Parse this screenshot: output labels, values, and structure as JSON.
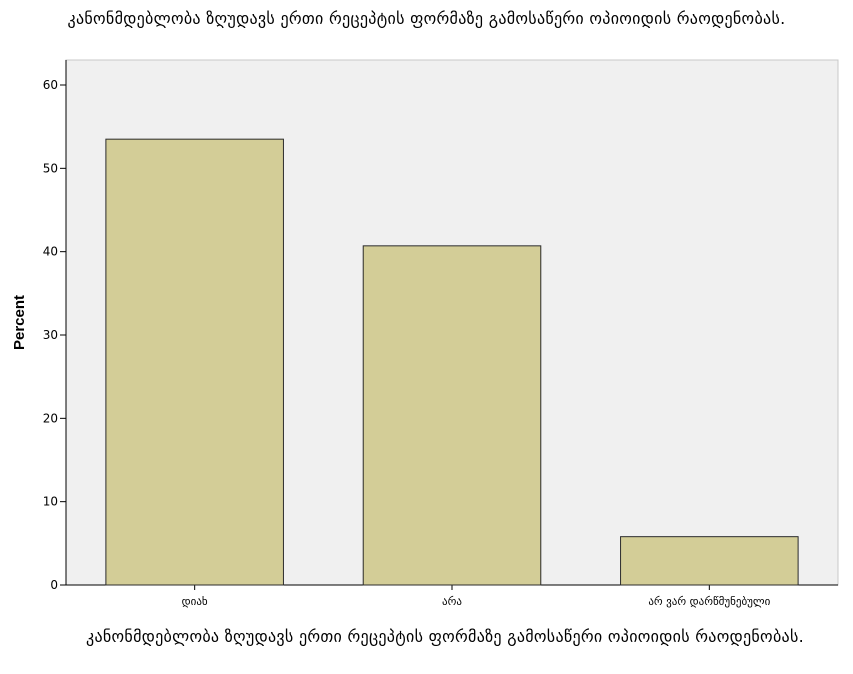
{
  "chart_data": {
    "type": "bar",
    "title": "კანონმდებლობა ზღუდავს ერთი რეცეპტის ფორმაზე გამოსაწერი ოპიოიდის რაოდენობას.",
    "xlabel": "კანონმდებლობა ზღუდავს ერთი რეცეპტის ფორმაზე გამოსაწერი ოპიოიდის რაოდენობას.",
    "ylabel": "Percent",
    "categories": [
      "დიახ",
      "არა",
      "არ ვარ დარწმუნებული"
    ],
    "values": [
      53.5,
      40.7,
      5.8
    ],
    "ylim": [
      0,
      63
    ],
    "yticks": [
      0,
      10,
      20,
      30,
      40,
      50,
      60
    ],
    "grid": false,
    "colors": {
      "bar_fill": "#d3cd97",
      "bar_stroke": "#2b2b2b",
      "plot_background": "#f0f0f0",
      "axis": "#000000"
    }
  }
}
